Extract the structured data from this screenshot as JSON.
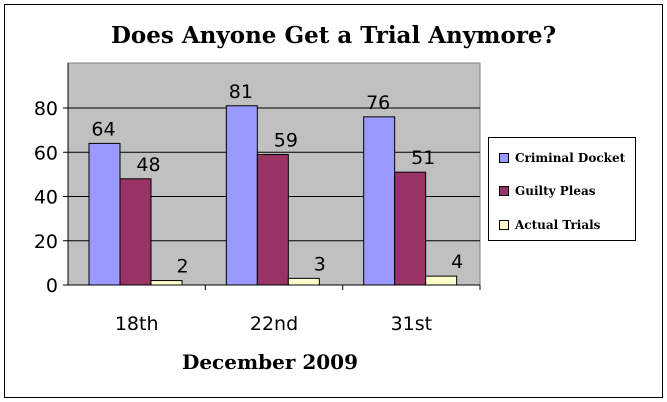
{
  "chart_data": {
    "type": "bar",
    "title": "Does Anyone Get a Trial Anymore?",
    "xlabel": "December 2009",
    "ylabel": "",
    "categories": [
      "18th",
      "22nd",
      "31st"
    ],
    "series": [
      {
        "name": "Criminal Docket",
        "values": [
          64,
          81,
          76
        ],
        "color": "#9999ff"
      },
      {
        "name": "Guilty Pleas",
        "values": [
          48,
          59,
          51
        ],
        "color": "#993366"
      },
      {
        "name": "Actual Trials",
        "values": [
          2,
          3,
          4
        ],
        "color": "#ffffcc"
      }
    ],
    "ylim": [
      0,
      80
    ],
    "yticks": [
      "0",
      "20",
      "40",
      "60",
      "80"
    ],
    "grid": true,
    "legend": "right",
    "plot_background": "#c0c0c0"
  }
}
